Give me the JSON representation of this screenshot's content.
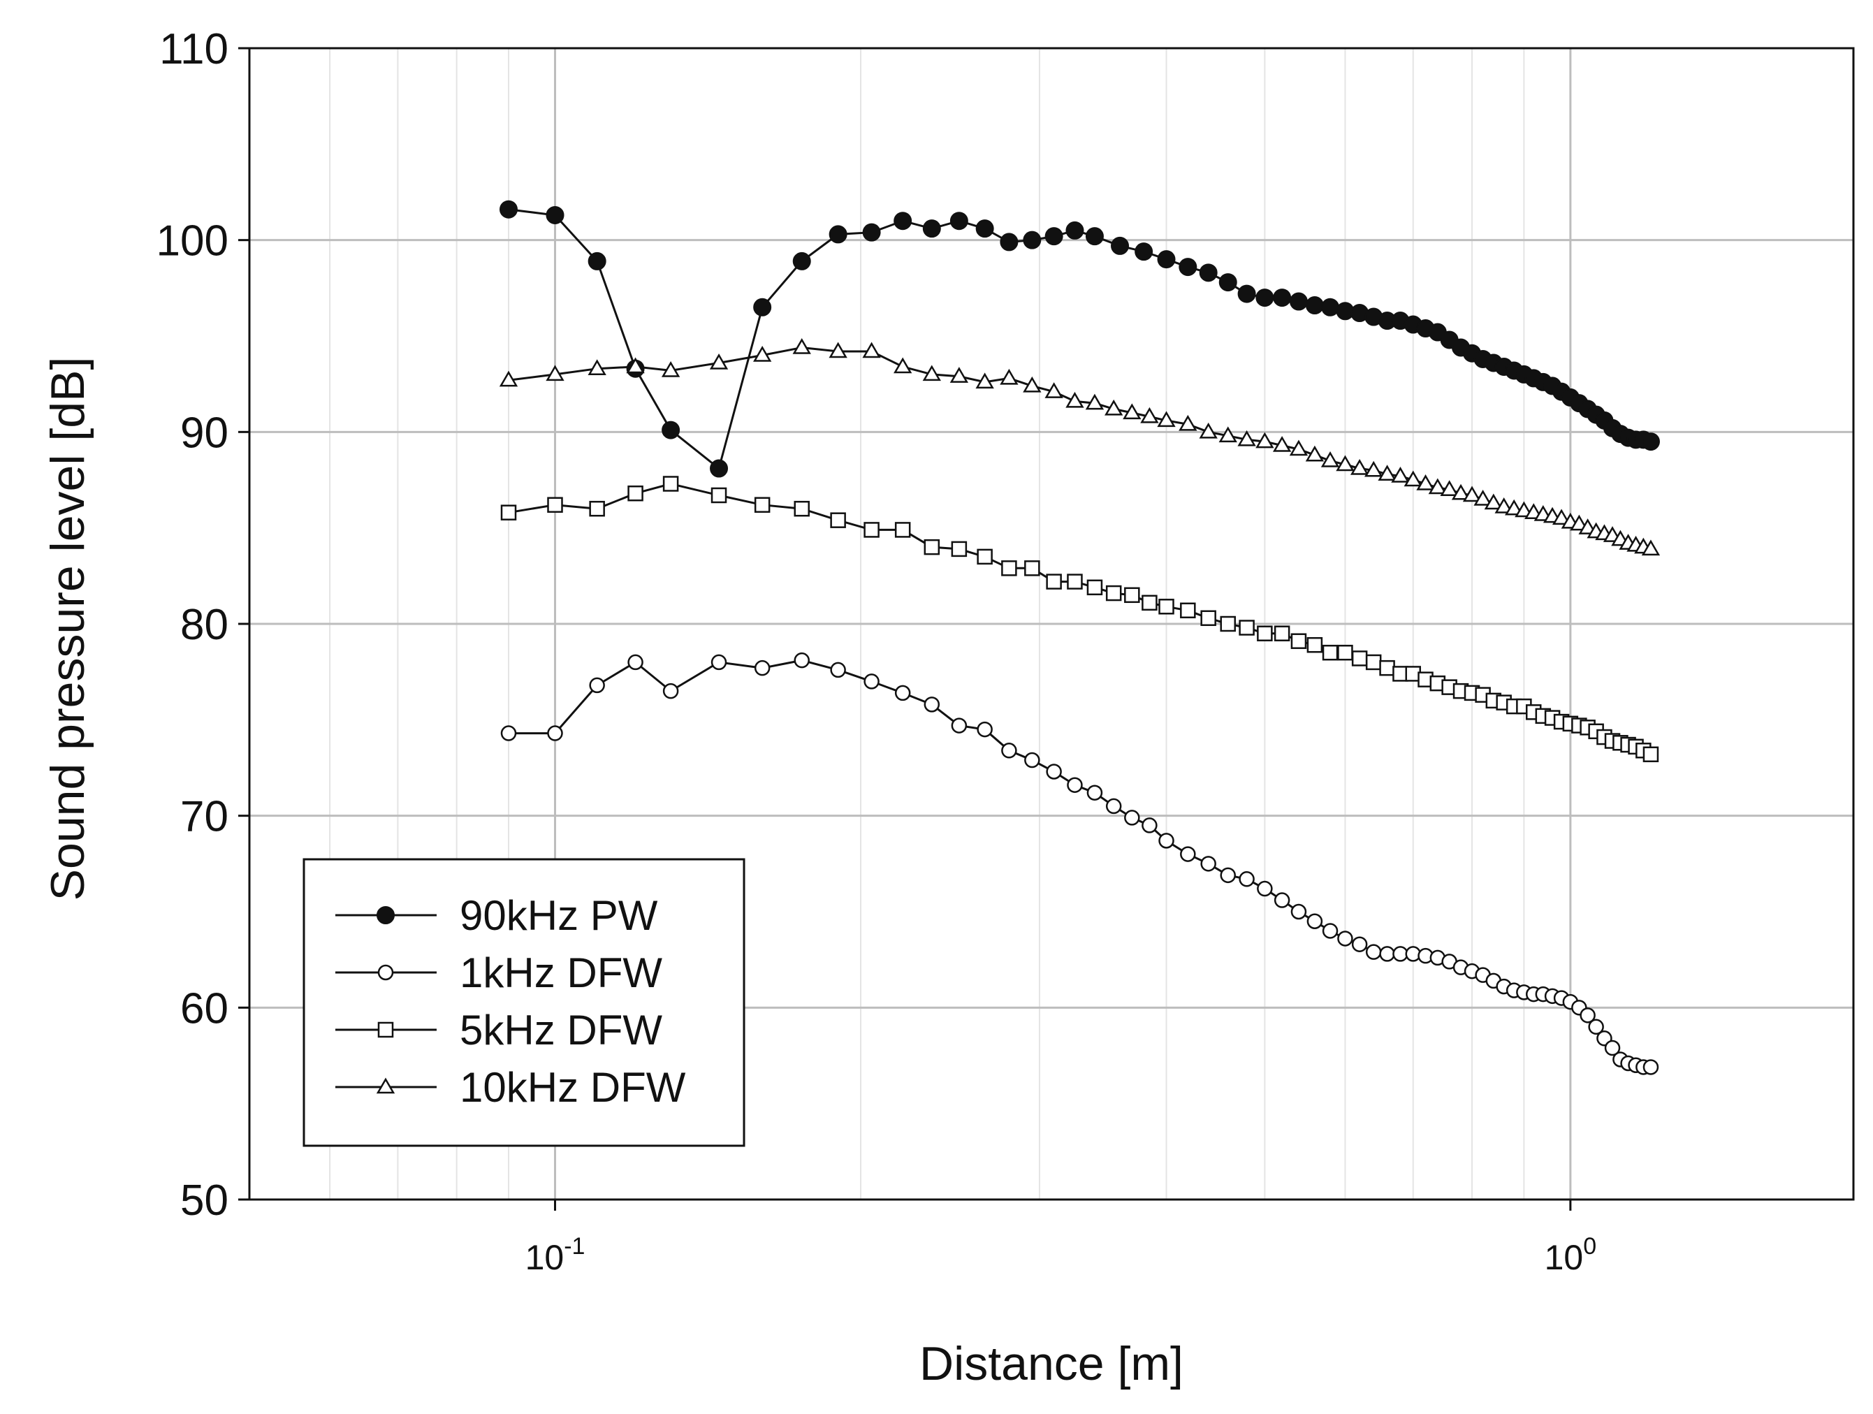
{
  "chart_data": {
    "type": "line",
    "title": "",
    "xlabel": "Distance [m]",
    "ylabel": "Sound pressure level [dB]",
    "xscale": "log",
    "xlim": [
      0.05,
      1.9
    ],
    "ylim": [
      50,
      110
    ],
    "yticks": [
      "50",
      "60",
      "70",
      "80",
      "90",
      "100",
      "110"
    ],
    "xticks": [
      {
        "value": 0.1,
        "base": "10",
        "exp": "-1"
      },
      {
        "value": 1.0,
        "base": "10",
        "exp": "0"
      }
    ],
    "grid": true,
    "legend_position": "bottom-left",
    "series": [
      {
        "name": "90kHz PW",
        "marker": "filled-circle",
        "points": [
          [
            0.09,
            101.6
          ],
          [
            0.1,
            101.3
          ],
          [
            0.11,
            98.9
          ],
          [
            0.12,
            93.3
          ],
          [
            0.13,
            90.1
          ],
          [
            0.145,
            88.1
          ],
          [
            0.16,
            96.5
          ],
          [
            0.175,
            98.9
          ],
          [
            0.19,
            100.3
          ],
          [
            0.205,
            100.4
          ],
          [
            0.22,
            101.0
          ],
          [
            0.235,
            100.6
          ],
          [
            0.25,
            101.0
          ],
          [
            0.265,
            100.6
          ],
          [
            0.28,
            99.9
          ],
          [
            0.295,
            100.0
          ],
          [
            0.31,
            100.2
          ],
          [
            0.325,
            100.5
          ],
          [
            0.34,
            100.2
          ],
          [
            0.36,
            99.7
          ],
          [
            0.38,
            99.4
          ],
          [
            0.4,
            99.0
          ],
          [
            0.42,
            98.6
          ],
          [
            0.44,
            98.3
          ],
          [
            0.46,
            97.8
          ],
          [
            0.48,
            97.2
          ],
          [
            0.5,
            97.0
          ],
          [
            0.52,
            97.0
          ],
          [
            0.54,
            96.8
          ],
          [
            0.56,
            96.6
          ],
          [
            0.58,
            96.5
          ],
          [
            0.6,
            96.3
          ],
          [
            0.62,
            96.2
          ],
          [
            0.64,
            96.0
          ],
          [
            0.66,
            95.8
          ],
          [
            0.68,
            95.8
          ],
          [
            0.7,
            95.6
          ],
          [
            0.72,
            95.4
          ],
          [
            0.74,
            95.2
          ],
          [
            0.76,
            94.8
          ],
          [
            0.78,
            94.4
          ],
          [
            0.8,
            94.1
          ],
          [
            0.82,
            93.8
          ],
          [
            0.84,
            93.6
          ],
          [
            0.86,
            93.4
          ],
          [
            0.88,
            93.2
          ],
          [
            0.9,
            93.0
          ],
          [
            0.92,
            92.8
          ],
          [
            0.94,
            92.6
          ],
          [
            0.96,
            92.4
          ],
          [
            0.98,
            92.1
          ],
          [
            1.0,
            91.8
          ],
          [
            1.02,
            91.5
          ],
          [
            1.04,
            91.2
          ],
          [
            1.06,
            90.9
          ],
          [
            1.08,
            90.6
          ],
          [
            1.1,
            90.2
          ],
          [
            1.12,
            89.9
          ],
          [
            1.14,
            89.7
          ],
          [
            1.16,
            89.6
          ],
          [
            1.18,
            89.6
          ],
          [
            1.2,
            89.5
          ]
        ]
      },
      {
        "name": "1kHz DFW",
        "marker": "open-circle",
        "points": [
          [
            0.09,
            74.3
          ],
          [
            0.1,
            74.3
          ],
          [
            0.11,
            76.8
          ],
          [
            0.12,
            78.0
          ],
          [
            0.13,
            76.5
          ],
          [
            0.145,
            78.0
          ],
          [
            0.16,
            77.7
          ],
          [
            0.175,
            78.1
          ],
          [
            0.19,
            77.6
          ],
          [
            0.205,
            77.0
          ],
          [
            0.22,
            76.4
          ],
          [
            0.235,
            75.8
          ],
          [
            0.25,
            74.7
          ],
          [
            0.265,
            74.5
          ],
          [
            0.28,
            73.4
          ],
          [
            0.295,
            72.9
          ],
          [
            0.31,
            72.3
          ],
          [
            0.325,
            71.6
          ],
          [
            0.34,
            71.2
          ],
          [
            0.355,
            70.5
          ],
          [
            0.37,
            69.9
          ],
          [
            0.385,
            69.5
          ],
          [
            0.4,
            68.7
          ],
          [
            0.42,
            68.0
          ],
          [
            0.44,
            67.5
          ],
          [
            0.46,
            66.9
          ],
          [
            0.48,
            66.7
          ],
          [
            0.5,
            66.2
          ],
          [
            0.52,
            65.6
          ],
          [
            0.54,
            65.0
          ],
          [
            0.56,
            64.5
          ],
          [
            0.58,
            64.0
          ],
          [
            0.6,
            63.6
          ],
          [
            0.62,
            63.3
          ],
          [
            0.64,
            62.9
          ],
          [
            0.66,
            62.8
          ],
          [
            0.68,
            62.8
          ],
          [
            0.7,
            62.8
          ],
          [
            0.72,
            62.7
          ],
          [
            0.74,
            62.6
          ],
          [
            0.76,
            62.4
          ],
          [
            0.78,
            62.1
          ],
          [
            0.8,
            61.9
          ],
          [
            0.82,
            61.7
          ],
          [
            0.84,
            61.4
          ],
          [
            0.86,
            61.1
          ],
          [
            0.88,
            60.9
          ],
          [
            0.9,
            60.8
          ],
          [
            0.92,
            60.7
          ],
          [
            0.94,
            60.7
          ],
          [
            0.96,
            60.6
          ],
          [
            0.98,
            60.5
          ],
          [
            1.0,
            60.3
          ],
          [
            1.02,
            60.0
          ],
          [
            1.04,
            59.6
          ],
          [
            1.06,
            59.0
          ],
          [
            1.08,
            58.4
          ],
          [
            1.1,
            57.9
          ],
          [
            1.12,
            57.3
          ],
          [
            1.14,
            57.1
          ],
          [
            1.16,
            57.0
          ],
          [
            1.18,
            56.9
          ],
          [
            1.2,
            56.9
          ]
        ]
      },
      {
        "name": "5kHz DFW",
        "marker": "open-square",
        "points": [
          [
            0.09,
            85.8
          ],
          [
            0.1,
            86.2
          ],
          [
            0.11,
            86.0
          ],
          [
            0.12,
            86.8
          ],
          [
            0.13,
            87.3
          ],
          [
            0.145,
            86.7
          ],
          [
            0.16,
            86.2
          ],
          [
            0.175,
            86.0
          ],
          [
            0.19,
            85.4
          ],
          [
            0.205,
            84.9
          ],
          [
            0.22,
            84.9
          ],
          [
            0.235,
            84.0
          ],
          [
            0.25,
            83.9
          ],
          [
            0.265,
            83.5
          ],
          [
            0.28,
            82.9
          ],
          [
            0.295,
            82.9
          ],
          [
            0.31,
            82.2
          ],
          [
            0.325,
            82.2
          ],
          [
            0.34,
            81.9
          ],
          [
            0.355,
            81.6
          ],
          [
            0.37,
            81.5
          ],
          [
            0.385,
            81.1
          ],
          [
            0.4,
            80.9
          ],
          [
            0.42,
            80.7
          ],
          [
            0.44,
            80.3
          ],
          [
            0.46,
            80.0
          ],
          [
            0.48,
            79.8
          ],
          [
            0.5,
            79.5
          ],
          [
            0.52,
            79.5
          ],
          [
            0.54,
            79.1
          ],
          [
            0.56,
            78.9
          ],
          [
            0.58,
            78.5
          ],
          [
            0.6,
            78.5
          ],
          [
            0.62,
            78.2
          ],
          [
            0.64,
            78.0
          ],
          [
            0.66,
            77.7
          ],
          [
            0.68,
            77.4
          ],
          [
            0.7,
            77.4
          ],
          [
            0.72,
            77.1
          ],
          [
            0.74,
            76.9
          ],
          [
            0.76,
            76.7
          ],
          [
            0.78,
            76.5
          ],
          [
            0.8,
            76.4
          ],
          [
            0.82,
            76.3
          ],
          [
            0.84,
            76.0
          ],
          [
            0.86,
            75.9
          ],
          [
            0.88,
            75.7
          ],
          [
            0.9,
            75.7
          ],
          [
            0.92,
            75.4
          ],
          [
            0.94,
            75.2
          ],
          [
            0.96,
            75.1
          ],
          [
            0.98,
            74.9
          ],
          [
            1.0,
            74.8
          ],
          [
            1.02,
            74.7
          ],
          [
            1.04,
            74.6
          ],
          [
            1.06,
            74.4
          ],
          [
            1.08,
            74.1
          ],
          [
            1.1,
            73.9
          ],
          [
            1.12,
            73.8
          ],
          [
            1.14,
            73.7
          ],
          [
            1.16,
            73.6
          ],
          [
            1.18,
            73.4
          ],
          [
            1.2,
            73.2
          ]
        ]
      },
      {
        "name": "10kHz DFW",
        "marker": "open-triangle",
        "points": [
          [
            0.09,
            92.7
          ],
          [
            0.1,
            93.0
          ],
          [
            0.11,
            93.3
          ],
          [
            0.12,
            93.4
          ],
          [
            0.13,
            93.2
          ],
          [
            0.145,
            93.6
          ],
          [
            0.16,
            94.0
          ],
          [
            0.175,
            94.4
          ],
          [
            0.19,
            94.2
          ],
          [
            0.205,
            94.2
          ],
          [
            0.22,
            93.4
          ],
          [
            0.235,
            93.0
          ],
          [
            0.25,
            92.9
          ],
          [
            0.265,
            92.6
          ],
          [
            0.28,
            92.8
          ],
          [
            0.295,
            92.4
          ],
          [
            0.31,
            92.1
          ],
          [
            0.325,
            91.6
          ],
          [
            0.34,
            91.5
          ],
          [
            0.355,
            91.2
          ],
          [
            0.37,
            91.0
          ],
          [
            0.385,
            90.8
          ],
          [
            0.4,
            90.6
          ],
          [
            0.42,
            90.4
          ],
          [
            0.44,
            90.0
          ],
          [
            0.46,
            89.8
          ],
          [
            0.48,
            89.6
          ],
          [
            0.5,
            89.5
          ],
          [
            0.52,
            89.3
          ],
          [
            0.54,
            89.1
          ],
          [
            0.56,
            88.8
          ],
          [
            0.58,
            88.5
          ],
          [
            0.6,
            88.3
          ],
          [
            0.62,
            88.1
          ],
          [
            0.64,
            88.0
          ],
          [
            0.66,
            87.8
          ],
          [
            0.68,
            87.7
          ],
          [
            0.7,
            87.5
          ],
          [
            0.72,
            87.3
          ],
          [
            0.74,
            87.1
          ],
          [
            0.76,
            87.0
          ],
          [
            0.78,
            86.8
          ],
          [
            0.8,
            86.7
          ],
          [
            0.82,
            86.5
          ],
          [
            0.84,
            86.3
          ],
          [
            0.86,
            86.1
          ],
          [
            0.88,
            86.0
          ],
          [
            0.9,
            85.9
          ],
          [
            0.92,
            85.8
          ],
          [
            0.94,
            85.7
          ],
          [
            0.96,
            85.6
          ],
          [
            0.98,
            85.5
          ],
          [
            1.0,
            85.3
          ],
          [
            1.02,
            85.2
          ],
          [
            1.04,
            85.0
          ],
          [
            1.06,
            84.8
          ],
          [
            1.08,
            84.7
          ],
          [
            1.1,
            84.6
          ],
          [
            1.12,
            84.4
          ],
          [
            1.14,
            84.2
          ],
          [
            1.16,
            84.1
          ],
          [
            1.18,
            84.0
          ],
          [
            1.2,
            83.9
          ]
        ]
      }
    ]
  }
}
